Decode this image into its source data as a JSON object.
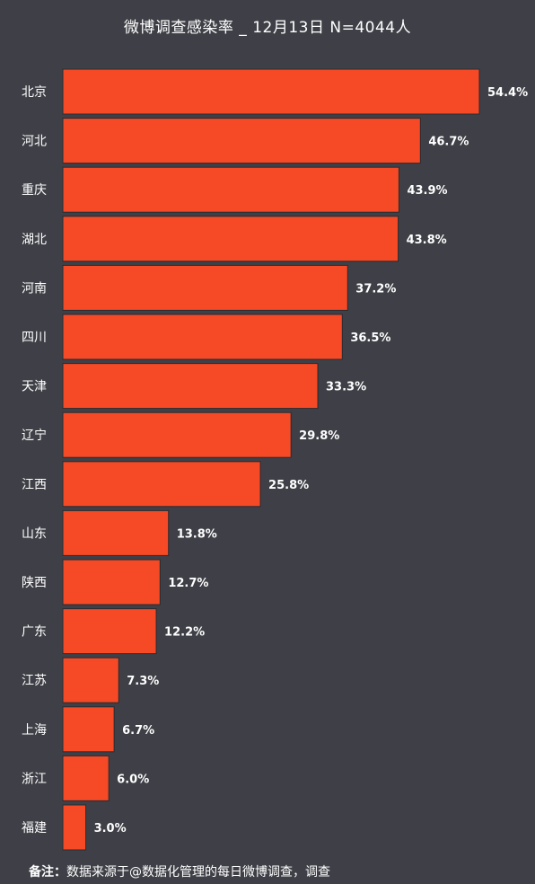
{
  "chart_data": {
    "type": "bar",
    "orientation": "horizontal",
    "title": "微博调查感染率 _ 12月13日 N=4044人",
    "categories": [
      "北京",
      "河北",
      "重庆",
      "湖北",
      "河南",
      "四川",
      "天津",
      "辽宁",
      "江西",
      "山东",
      "陕西",
      "广东",
      "江苏",
      "上海",
      "浙江",
      "福建"
    ],
    "values": [
      54.4,
      46.7,
      43.9,
      43.8,
      37.2,
      36.5,
      33.3,
      29.8,
      25.8,
      13.8,
      12.7,
      12.2,
      7.3,
      6.7,
      6.0,
      3.0
    ],
    "value_labels": [
      "54.4%",
      "46.7%",
      "43.9%",
      "43.8%",
      "37.2%",
      "36.5%",
      "33.3%",
      "29.8%",
      "25.8%",
      "13.8%",
      "12.7%",
      "12.2%",
      "7.3%",
      "6.7%",
      "6.0%",
      "3.0%"
    ],
    "xlim": [
      0,
      54.4
    ],
    "grid": false,
    "legend": "none",
    "colors": {
      "background": "#3f4047",
      "bar": "#f54a25",
      "bar_edge": "#2a2b30",
      "text": "#ffffff"
    }
  },
  "footnote": {
    "label": "备注：",
    "text": "数据来源于@数据化管理的每日微博调查，调查"
  }
}
